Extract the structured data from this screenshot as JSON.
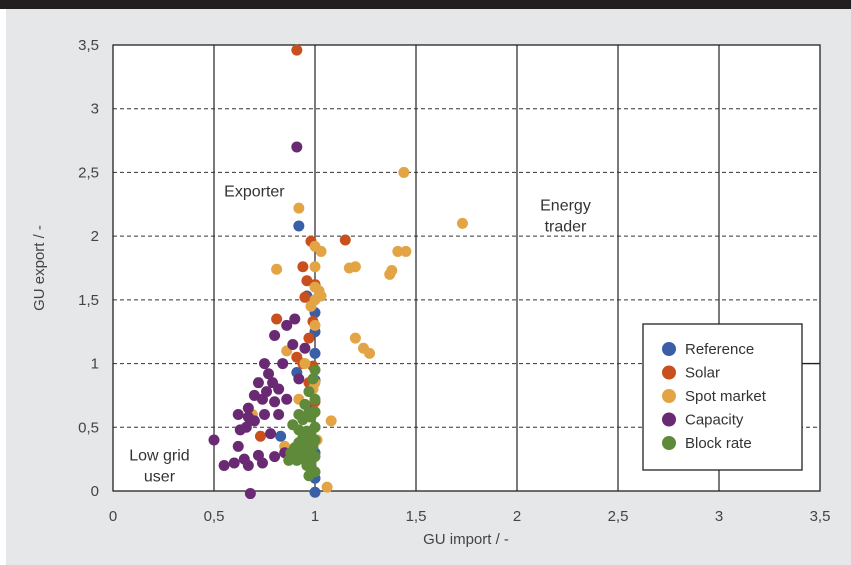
{
  "chart_data": {
    "type": "scatter",
    "xlabel": "GU import / -",
    "ylabel": "GU export / -",
    "xlim": [
      0,
      3.5
    ],
    "ylim": [
      0,
      3.5
    ],
    "x_ticks": [
      "0",
      "0,5",
      "1",
      "1,5",
      "2",
      "2,5",
      "3",
      "3,5"
    ],
    "y_ticks": [
      "0",
      "0,5",
      "1",
      "1,5",
      "2",
      "2,5",
      "3",
      "3,5"
    ],
    "grid": true,
    "legend_position": "bottom-right",
    "region_labels": [
      {
        "lines": [
          "Low grid",
          "user"
        ],
        "x": 0.23,
        "y": 0.24
      },
      {
        "lines": [
          "Exporter"
        ],
        "x": 0.7,
        "y": 2.31
      },
      {
        "lines": [
          "Energy",
          "trader"
        ],
        "x": 2.24,
        "y": 2.2
      }
    ],
    "series": [
      {
        "name": "Reference",
        "color": "#3a5fa6",
        "points": [
          [
            0.92,
            2.08
          ],
          [
            0.96,
            1.53
          ],
          [
            1.0,
            1.4
          ],
          [
            1.0,
            1.25
          ],
          [
            1.0,
            1.08
          ],
          [
            0.91,
            0.93
          ],
          [
            1.0,
            0.87
          ],
          [
            0.98,
            0.65
          ],
          [
            1.0,
            0.5
          ],
          [
            0.83,
            0.43
          ],
          [
            1.0,
            0.3
          ],
          [
            0.98,
            0.2
          ],
          [
            1.0,
            0.1
          ],
          [
            1.0,
            -0.01
          ]
        ]
      },
      {
        "name": "Solar",
        "color": "#c9501c",
        "points": [
          [
            0.91,
            3.46
          ],
          [
            0.98,
            1.96
          ],
          [
            1.15,
            1.97
          ],
          [
            0.94,
            1.76
          ],
          [
            0.96,
            1.65
          ],
          [
            1.0,
            1.62
          ],
          [
            0.95,
            1.52
          ],
          [
            0.81,
            1.35
          ],
          [
            0.99,
            1.33
          ],
          [
            0.97,
            1.2
          ],
          [
            0.91,
            1.05
          ],
          [
            0.94,
            1.0
          ],
          [
            0.99,
            0.98
          ],
          [
            0.97,
            0.85
          ],
          [
            1.0,
            0.7
          ],
          [
            0.96,
            0.45
          ],
          [
            0.73,
            0.43
          ],
          [
            1.0,
            0.62
          ]
        ]
      },
      {
        "name": "Spot market",
        "color": "#e3a446",
        "points": [
          [
            0.92,
            2.22
          ],
          [
            1.44,
            2.5
          ],
          [
            1.73,
            2.1
          ],
          [
            1.0,
            1.92
          ],
          [
            1.03,
            1.88
          ],
          [
            1.41,
            1.88
          ],
          [
            1.45,
            1.88
          ],
          [
            0.81,
            1.74
          ],
          [
            1.0,
            1.76
          ],
          [
            1.17,
            1.75
          ],
          [
            1.2,
            1.76
          ],
          [
            1.37,
            1.7
          ],
          [
            1.38,
            1.73
          ],
          [
            1.0,
            1.6
          ],
          [
            1.02,
            1.57
          ],
          [
            1.03,
            1.53
          ],
          [
            1.0,
            1.5
          ],
          [
            0.98,
            1.45
          ],
          [
            1.0,
            1.3
          ],
          [
            1.2,
            1.2
          ],
          [
            1.24,
            1.12
          ],
          [
            1.27,
            1.08
          ],
          [
            0.86,
            1.1
          ],
          [
            0.95,
            1.0
          ],
          [
            1.0,
            0.85
          ],
          [
            0.99,
            0.8
          ],
          [
            0.92,
            0.72
          ],
          [
            1.0,
            0.62
          ],
          [
            1.08,
            0.55
          ],
          [
            0.69,
            0.6
          ],
          [
            1.01,
            0.4
          ],
          [
            0.85,
            0.35
          ],
          [
            1.06,
            0.03
          ]
        ]
      },
      {
        "name": "Capacity",
        "color": "#6a2a73",
        "points": [
          [
            0.91,
            2.7
          ],
          [
            0.86,
            1.3
          ],
          [
            0.9,
            1.35
          ],
          [
            0.8,
            1.22
          ],
          [
            0.89,
            1.15
          ],
          [
            0.95,
            1.12
          ],
          [
            0.84,
            1.0
          ],
          [
            0.75,
            1.0
          ],
          [
            0.77,
            0.92
          ],
          [
            0.92,
            0.88
          ],
          [
            0.79,
            0.85
          ],
          [
            0.72,
            0.85
          ],
          [
            0.82,
            0.8
          ],
          [
            0.76,
            0.78
          ],
          [
            0.7,
            0.75
          ],
          [
            0.74,
            0.72
          ],
          [
            0.86,
            0.72
          ],
          [
            0.8,
            0.7
          ],
          [
            0.67,
            0.65
          ],
          [
            0.62,
            0.6
          ],
          [
            0.75,
            0.6
          ],
          [
            0.82,
            0.6
          ],
          [
            0.67,
            0.58
          ],
          [
            0.7,
            0.55
          ],
          [
            0.66,
            0.5
          ],
          [
            0.63,
            0.48
          ],
          [
            0.78,
            0.45
          ],
          [
            0.5,
            0.4
          ],
          [
            0.62,
            0.35
          ],
          [
            0.85,
            0.3
          ],
          [
            0.72,
            0.28
          ],
          [
            0.8,
            0.27
          ],
          [
            0.65,
            0.25
          ],
          [
            0.6,
            0.22
          ],
          [
            0.74,
            0.22
          ],
          [
            0.55,
            0.2
          ],
          [
            0.67,
            0.2
          ],
          [
            0.68,
            -0.02
          ]
        ]
      },
      {
        "name": "Block rate",
        "color": "#5f8a3a",
        "points": [
          [
            1.0,
            0.95
          ],
          [
            0.99,
            0.88
          ],
          [
            0.97,
            0.78
          ],
          [
            1.0,
            0.72
          ],
          [
            0.95,
            0.68
          ],
          [
            0.97,
            0.62
          ],
          [
            1.0,
            0.62
          ],
          [
            0.92,
            0.6
          ],
          [
            0.98,
            0.58
          ],
          [
            0.94,
            0.56
          ],
          [
            0.89,
            0.52
          ],
          [
            1.0,
            0.5
          ],
          [
            0.92,
            0.48
          ],
          [
            0.96,
            0.47
          ],
          [
            0.98,
            0.45
          ],
          [
            0.94,
            0.42
          ],
          [
            0.97,
            0.4
          ],
          [
            1.0,
            0.4
          ],
          [
            0.92,
            0.38
          ],
          [
            0.95,
            0.36
          ],
          [
            0.99,
            0.35
          ],
          [
            0.9,
            0.34
          ],
          [
            0.96,
            0.32
          ],
          [
            0.93,
            0.3
          ],
          [
            0.88,
            0.3
          ],
          [
            0.97,
            0.28
          ],
          [
            1.0,
            0.27
          ],
          [
            0.94,
            0.25
          ],
          [
            0.91,
            0.24
          ],
          [
            0.87,
            0.24
          ],
          [
            0.98,
            0.22
          ],
          [
            0.96,
            0.2
          ],
          [
            1.0,
            0.15
          ],
          [
            0.97,
            0.12
          ]
        ]
      }
    ]
  }
}
